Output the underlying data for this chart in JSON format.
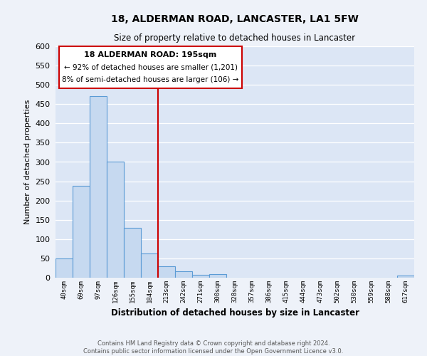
{
  "title": "18, ALDERMAN ROAD, LANCASTER, LA1 5FW",
  "subtitle": "Size of property relative to detached houses in Lancaster",
  "xlabel": "Distribution of detached houses by size in Lancaster",
  "ylabel": "Number of detached properties",
  "bar_labels": [
    "40sqm",
    "69sqm",
    "97sqm",
    "126sqm",
    "155sqm",
    "184sqm",
    "213sqm",
    "242sqm",
    "271sqm",
    "300sqm",
    "328sqm",
    "357sqm",
    "386sqm",
    "415sqm",
    "444sqm",
    "473sqm",
    "502sqm",
    "530sqm",
    "559sqm",
    "588sqm",
    "617sqm"
  ],
  "bar_values": [
    50,
    238,
    470,
    300,
    130,
    62,
    30,
    16,
    8,
    10,
    0,
    0,
    0,
    0,
    0,
    0,
    0,
    0,
    0,
    0,
    5
  ],
  "bar_color": "#c6d9f0",
  "bar_edge_color": "#5b9bd5",
  "ylim": [
    0,
    600
  ],
  "yticks": [
    0,
    50,
    100,
    150,
    200,
    250,
    300,
    350,
    400,
    450,
    500,
    550,
    600
  ],
  "vline_x_idx": 6,
  "vline_color": "#cc0000",
  "annotation_title": "18 ALDERMAN ROAD: 195sqm",
  "annotation_line1": "← 92% of detached houses are smaller (1,201)",
  "annotation_line2": "8% of semi-detached houses are larger (106) →",
  "annotation_box_color": "#ffffff",
  "annotation_box_edge": "#cc0000",
  "footer_line1": "Contains HM Land Registry data © Crown copyright and database right 2024.",
  "footer_line2": "Contains public sector information licensed under the Open Government Licence v3.0.",
  "bg_color": "#eef2f9",
  "plot_bg_color": "#dce6f5"
}
